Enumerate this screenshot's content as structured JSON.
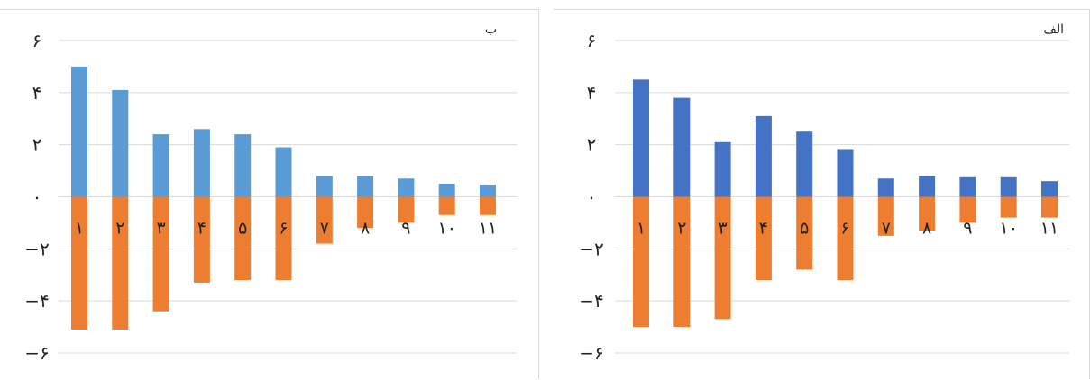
{
  "chart_data": [
    {
      "type": "bar",
      "title": "ب",
      "categories": [
        "۱",
        "۲",
        "۳",
        "۴",
        "۵",
        "۶",
        "۷",
        "۸",
        "۹",
        "۱۰",
        "۱۱"
      ],
      "series": [
        {
          "values": [
            5.0,
            4.1,
            2.4,
            2.6,
            2.4,
            1.9,
            0.8,
            0.8,
            0.7,
            0.5,
            0.45
          ]
        },
        {
          "values": [
            -5.1,
            -5.1,
            -4.4,
            -3.3,
            -3.2,
            -3.2,
            -1.8,
            -1.2,
            -1.0,
            -0.7,
            -0.7
          ]
        }
      ],
      "colors": [
        "#5b9bd5",
        "#ed7d31"
      ],
      "yticks": [
        "۶",
        "۴",
        "۲",
        "۰",
        "−۲",
        "−۴",
        "−۶"
      ],
      "ytick_values": [
        6,
        4,
        2,
        0,
        -2,
        -4,
        -6
      ],
      "ylim": [
        -6,
        6
      ],
      "grid": true,
      "stacked": true
    },
    {
      "type": "bar",
      "title": "الف",
      "categories": [
        "۱",
        "۲",
        "۳",
        "۴",
        "۵",
        "۶",
        "۷",
        "۸",
        "۹",
        "۱۰",
        "۱۱"
      ],
      "series": [
        {
          "values": [
            4.5,
            3.8,
            2.1,
            3.1,
            2.5,
            1.8,
            0.7,
            0.8,
            0.75,
            0.75,
            0.6
          ]
        },
        {
          "values": [
            -5.0,
            -5.0,
            -4.7,
            -3.2,
            -2.8,
            -3.2,
            -1.5,
            -1.3,
            -1.0,
            -0.8,
            -0.8
          ]
        }
      ],
      "colors": [
        "#4472c4",
        "#ed7d31"
      ],
      "yticks": [
        "۶",
        "۴",
        "۲",
        "۰",
        "−۲",
        "−۴",
        "−۶"
      ],
      "ytick_values": [
        6,
        4,
        2,
        0,
        -2,
        -4,
        -6
      ],
      "ylim": [
        -6,
        6
      ],
      "grid": true,
      "stacked": true
    }
  ]
}
